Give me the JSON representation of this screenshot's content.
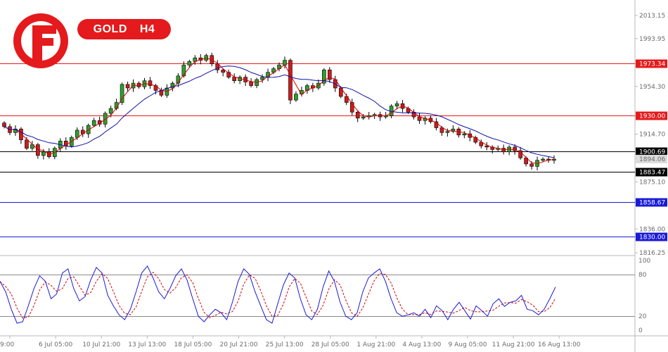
{
  "header": {
    "symbol": "GOLD",
    "timeframe": "H4"
  },
  "brand": {
    "logo": "fbs-logo-icon",
    "color": "#e41a1c"
  },
  "chart_data": {
    "type": "candlestick",
    "price_axis": {
      "ticks": [
        "2013.15",
        "1993.95",
        "1973.34",
        "1954.30",
        "1930.00",
        "1914.70",
        "1900.69",
        "1894.06",
        "1875.10",
        "1858.67",
        "1836.00",
        "1816.25"
      ],
      "range": [
        1814,
        2026
      ]
    },
    "time_axis": {
      "ticks": [
        "9:00",
        "6 Jul 05:00",
        "10 Jul 21:00",
        "13 Jul 13:00",
        "18 Jul 05:00",
        "20 Jul 21:00",
        "25 Jul 13:00",
        "28 Jul 05:00",
        "1 Aug 21:00",
        "4 Aug 13:00",
        "9 Aug 05:00",
        "11 Aug 21:00",
        "16 Aug 13:00"
      ]
    },
    "levels": [
      {
        "value": 1973.34,
        "label": "1973.34",
        "color": "#e41a1c"
      },
      {
        "value": 1930.0,
        "label": "1930.00",
        "color": "#e41a1c"
      },
      {
        "value": 1900.69,
        "label": "1900.69",
        "color": "#000000"
      },
      {
        "value": 1883.47,
        "label": "1883.47",
        "color": "#000000"
      },
      {
        "value": 1858.67,
        "label": "1858.67",
        "color": "#1a1ad6"
      },
      {
        "value": 1830.0,
        "label": "1830.00",
        "color": "#1a1ad6"
      }
    ],
    "current_price": {
      "value": 1894.06,
      "label": "1894.06"
    },
    "moving_averages": [
      {
        "color": "#d40000"
      },
      {
        "color": "#1010a8"
      }
    ],
    "candles": [
      [
        1924,
        1921
      ],
      [
        1921,
        1916
      ],
      [
        1916,
        1919
      ],
      [
        1919,
        1910
      ],
      [
        1910,
        1903
      ],
      [
        1903,
        1906
      ],
      [
        1906,
        1897
      ],
      [
        1897,
        1900
      ],
      [
        1900,
        1896
      ],
      [
        1896,
        1903
      ],
      [
        1903,
        1909
      ],
      [
        1909,
        1905
      ],
      [
        1905,
        1912
      ],
      [
        1912,
        1918
      ],
      [
        1918,
        1915
      ],
      [
        1915,
        1922
      ],
      [
        1922,
        1926
      ],
      [
        1926,
        1923
      ],
      [
        1923,
        1932
      ],
      [
        1932,
        1936
      ],
      [
        1936,
        1941
      ],
      [
        1941,
        1956
      ],
      [
        1956,
        1953
      ],
      [
        1953,
        1957
      ],
      [
        1957,
        1954
      ],
      [
        1954,
        1959
      ],
      [
        1959,
        1955
      ],
      [
        1955,
        1951
      ],
      [
        1951,
        1947
      ],
      [
        1947,
        1953
      ],
      [
        1953,
        1957
      ],
      [
        1957,
        1963
      ],
      [
        1963,
        1972
      ],
      [
        1972,
        1975
      ],
      [
        1975,
        1978
      ],
      [
        1978,
        1976
      ],
      [
        1976,
        1980
      ],
      [
        1980,
        1973
      ],
      [
        1973,
        1968
      ],
      [
        1968,
        1966
      ],
      [
        1966,
        1962
      ],
      [
        1962,
        1959
      ],
      [
        1959,
        1962
      ],
      [
        1962,
        1958
      ],
      [
        1958,
        1955
      ],
      [
        1955,
        1960
      ],
      [
        1960,
        1962
      ],
      [
        1962,
        1966
      ],
      [
        1966,
        1969
      ],
      [
        1969,
        1972
      ],
      [
        1972,
        1976
      ],
      [
        1976,
        1943
      ],
      [
        1943,
        1948
      ],
      [
        1948,
        1951
      ],
      [
        1951,
        1955
      ],
      [
        1955,
        1953
      ],
      [
        1953,
        1957
      ],
      [
        1957,
        1968
      ],
      [
        1968,
        1960
      ],
      [
        1960,
        1953
      ],
      [
        1953,
        1946
      ],
      [
        1946,
        1941
      ],
      [
        1941,
        1933
      ],
      [
        1933,
        1928
      ],
      [
        1928,
        1929
      ],
      [
        1929,
        1930
      ],
      [
        1930,
        1931
      ],
      [
        1931,
        1929
      ],
      [
        1929,
        1930
      ],
      [
        1930,
        1938
      ],
      [
        1938,
        1940
      ],
      [
        1940,
        1936
      ],
      [
        1936,
        1933
      ],
      [
        1933,
        1929
      ],
      [
        1929,
        1926
      ],
      [
        1926,
        1928
      ],
      [
        1928,
        1925
      ],
      [
        1925,
        1920
      ],
      [
        1920,
        1916
      ],
      [
        1916,
        1917
      ],
      [
        1917,
        1919
      ],
      [
        1919,
        1914
      ],
      [
        1914,
        1915
      ],
      [
        1915,
        1912
      ],
      [
        1912,
        1908
      ],
      [
        1908,
        1905
      ],
      [
        1905,
        1904
      ],
      [
        1904,
        1902
      ],
      [
        1902,
        1903
      ],
      [
        1903,
        1900
      ],
      [
        1900,
        1904
      ],
      [
        1904,
        1901
      ],
      [
        1901,
        1895
      ],
      [
        1895,
        1890
      ],
      [
        1890,
        1888
      ],
      [
        1888,
        1893
      ],
      [
        1893,
        1894
      ],
      [
        1894,
        1893
      ],
      [
        1893,
        1894
      ]
    ],
    "stochastic": {
      "ticks": [
        "100",
        "80",
        "20",
        "0"
      ],
      "levels": [
        80,
        20
      ],
      "main_color": "#1a1ad6",
      "signal_color": "#d40000",
      "k": [
        70,
        55,
        30,
        10,
        12,
        35,
        60,
        78,
        70,
        45,
        52,
        82,
        88,
        60,
        42,
        48,
        72,
        90,
        82,
        50,
        35,
        22,
        15,
        30,
        55,
        82,
        92,
        75,
        55,
        45,
        60,
        78,
        88,
        72,
        45,
        20,
        12,
        22,
        30,
        25,
        15,
        40,
        70,
        88,
        80,
        55,
        35,
        15,
        10,
        38,
        65,
        82,
        75,
        45,
        22,
        15,
        30,
        62,
        85,
        70,
        40,
        20,
        15,
        25,
        55,
        75,
        82,
        88,
        70,
        45,
        25,
        20,
        22,
        25,
        20,
        30,
        18,
        35,
        28,
        15,
        30,
        40,
        28,
        16,
        35,
        28,
        20,
        38,
        45,
        34,
        40,
        42,
        50,
        30,
        28,
        22,
        30,
        45,
        62
      ]
    }
  }
}
